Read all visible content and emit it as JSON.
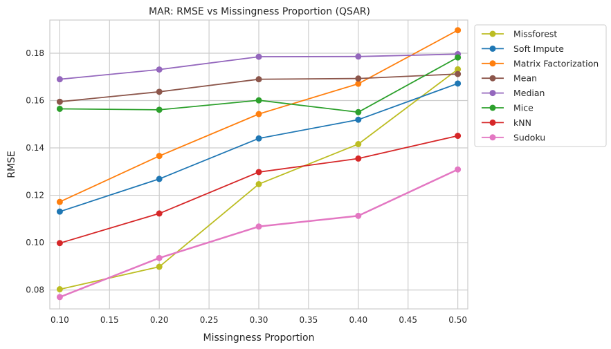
{
  "chart_data": {
    "type": "line",
    "title": "MAR: RMSE vs Missingness Proportion (QSAR)",
    "xlabel": "Missingness Proportion",
    "ylabel": "RMSE",
    "xlim": [
      0.09,
      0.51
    ],
    "ylim": [
      0.072,
      0.194
    ],
    "xticks": [
      "0.10",
      "0.15",
      "0.20",
      "0.25",
      "0.30",
      "0.35",
      "0.40",
      "0.45",
      "0.50"
    ],
    "yticks": [
      "0.08",
      "0.10",
      "0.12",
      "0.14",
      "0.16",
      "0.18"
    ],
    "grid": true,
    "legend_position": "outside-top-right",
    "x": [
      0.1,
      0.2,
      0.3,
      0.4,
      0.5
    ],
    "series": [
      {
        "name": "Missforest",
        "color": "#bcbd22",
        "values": [
          0.0803,
          0.0898,
          0.1247,
          0.1416,
          0.1732
        ]
      },
      {
        "name": "Soft Impute",
        "color": "#1f77b4",
        "values": [
          0.1131,
          0.1269,
          0.144,
          0.1519,
          0.1672
        ]
      },
      {
        "name": "Matrix Factorization",
        "color": "#ff7f0e",
        "values": [
          0.1172,
          0.1366,
          0.1543,
          0.1671,
          0.1897
        ]
      },
      {
        "name": "Mean",
        "color": "#8c564b",
        "values": [
          0.1595,
          0.1637,
          0.169,
          0.1693,
          0.1712
        ]
      },
      {
        "name": "Median",
        "color": "#9467bd",
        "values": [
          0.169,
          0.1731,
          0.1785,
          0.1786,
          0.1796
        ]
      },
      {
        "name": "Mice",
        "color": "#2ca02c",
        "values": [
          0.1565,
          0.1561,
          0.1601,
          0.1551,
          0.1782
        ]
      },
      {
        "name": "kNN",
        "color": "#d62728",
        "values": [
          0.0998,
          0.1123,
          0.1298,
          0.1355,
          0.1451
        ]
      },
      {
        "name": "Sudoku",
        "color": "#e377c2",
        "values": [
          0.077,
          0.0935,
          0.1068,
          0.1113,
          0.1309
        ]
      }
    ]
  }
}
